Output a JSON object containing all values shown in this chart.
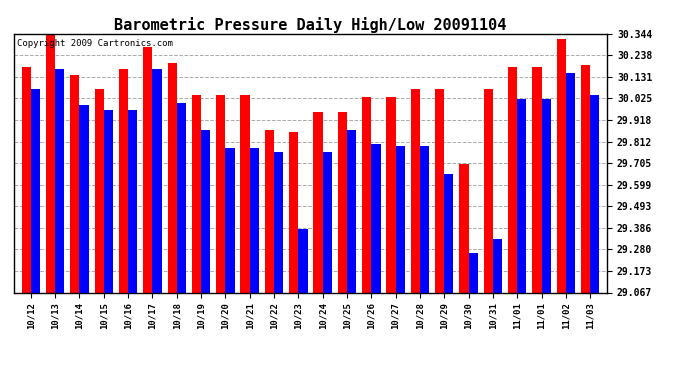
{
  "title": "Barometric Pressure Daily High/Low 20091104",
  "copyright": "Copyright 2009 Cartronics.com",
  "dates": [
    "10/12",
    "10/13",
    "10/14",
    "10/15",
    "10/16",
    "10/17",
    "10/18",
    "10/19",
    "10/20",
    "10/21",
    "10/22",
    "10/23",
    "10/24",
    "10/25",
    "10/26",
    "10/27",
    "10/28",
    "10/29",
    "10/30",
    "10/31",
    "11/01",
    "11/01",
    "11/02",
    "11/03"
  ],
  "highs": [
    30.18,
    30.34,
    30.14,
    30.07,
    30.17,
    30.28,
    30.2,
    30.04,
    30.04,
    30.04,
    29.87,
    29.86,
    29.96,
    29.96,
    30.03,
    30.03,
    30.07,
    30.07,
    29.7,
    30.07,
    30.18,
    30.18,
    30.32,
    30.19
  ],
  "lows": [
    30.07,
    30.17,
    29.99,
    29.97,
    29.97,
    30.17,
    30.0,
    29.87,
    29.78,
    29.78,
    29.76,
    29.38,
    29.76,
    29.87,
    29.8,
    29.79,
    29.79,
    29.65,
    29.26,
    29.33,
    30.02,
    30.02,
    30.15,
    30.04
  ],
  "high_color": "#ff0000",
  "low_color": "#0000ff",
  "bg_color": "#ffffff",
  "grid_color": "#aaaaaa",
  "yticks": [
    29.067,
    29.173,
    29.28,
    29.386,
    29.493,
    29.599,
    29.705,
    29.812,
    29.918,
    30.025,
    30.131,
    30.238,
    30.344
  ],
  "ymin": 29.067,
  "ymax": 30.344,
  "title_fontsize": 11,
  "copyright_fontsize": 6.5
}
